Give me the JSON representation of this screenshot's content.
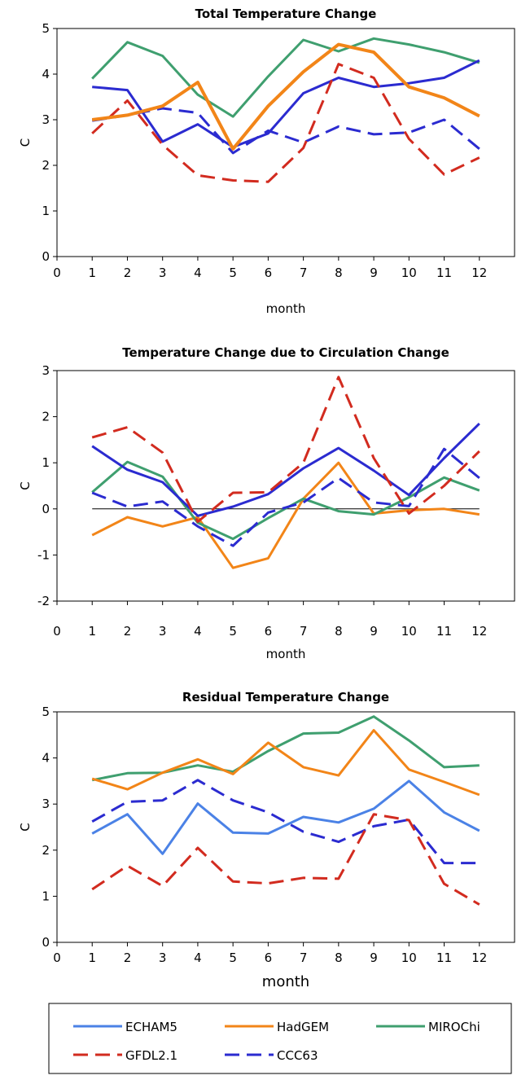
{
  "chart_data": [
    {
      "type": "line",
      "title": "Total Temperature Change",
      "xlabel": "month",
      "ylabel": "C",
      "xlim": [
        0,
        13
      ],
      "ylim": [
        0,
        5
      ],
      "x_ticks": [
        "0",
        "1",
        "2",
        "3",
        "4",
        "5",
        "6",
        "7",
        "8",
        "9",
        "10",
        "11",
        "12"
      ],
      "y_ticks": [
        "0",
        "1",
        "2",
        "3",
        "4",
        "5"
      ],
      "x": [
        1,
        2,
        3,
        4,
        5,
        6,
        7,
        8,
        9,
        10,
        11,
        12
      ],
      "series": [
        {
          "name": "MIROChi",
          "color": "#3f9f6f",
          "values": [
            3.9,
            4.7,
            4.4,
            3.55,
            3.07,
            3.95,
            4.75,
            4.5,
            4.78,
            4.65,
            4.48,
            4.25
          ]
        },
        {
          "name": "ECHAM5",
          "color": "#2b2bd0",
          "values": [
            3.72,
            3.65,
            2.52,
            2.9,
            2.4,
            2.7,
            3.58,
            3.92,
            3.72,
            3.8,
            3.92,
            4.3
          ]
        },
        {
          "name": "CCC63",
          "color": "#2b2bd0",
          "dashed": true,
          "values": [
            2.98,
            3.1,
            3.25,
            3.15,
            2.27,
            2.76,
            2.5,
            2.85,
            2.68,
            2.72,
            3.0,
            2.36
          ]
        },
        {
          "name": "GFDL2.1",
          "color": "#d22b1f",
          "dashed": true,
          "values": [
            2.7,
            3.42,
            2.45,
            1.78,
            1.67,
            1.64,
            2.38,
            4.22,
            3.92,
            2.58,
            1.8,
            2.17
          ]
        },
        {
          "name": "HadGEM",
          "color": "#f28518",
          "thick": true,
          "values": [
            3.0,
            3.1,
            3.3,
            3.82,
            2.36,
            3.3,
            4.05,
            4.65,
            4.48,
            3.72,
            3.48,
            3.08
          ]
        }
      ]
    },
    {
      "type": "line",
      "title": "Temperature Change due to Circulation Change",
      "xlabel": "month",
      "ylabel": "C",
      "xlim": [
        0,
        13
      ],
      "ylim": [
        -2,
        3
      ],
      "x_ticks": [
        "0",
        "1",
        "2",
        "3",
        "4",
        "5",
        "6",
        "7",
        "8",
        "9",
        "10",
        "11",
        "12"
      ],
      "y_ticks": [
        "-2",
        "-1",
        "0",
        "1",
        "2",
        "3"
      ],
      "zero_line": true,
      "x": [
        1,
        2,
        3,
        4,
        5,
        6,
        7,
        8,
        9,
        10,
        11,
        12
      ],
      "series": [
        {
          "name": "HadGEM",
          "color": "#f28518",
          "values": [
            -0.57,
            -0.18,
            -0.38,
            -0.18,
            -1.28,
            -1.07,
            0.22,
            1.0,
            -0.1,
            -0.03,
            0.0,
            -0.12
          ]
        },
        {
          "name": "MIROChi",
          "color": "#3f9f6f",
          "values": [
            0.36,
            1.02,
            0.7,
            -0.3,
            -0.65,
            -0.2,
            0.22,
            -0.05,
            -0.12,
            0.25,
            0.68,
            0.4
          ]
        },
        {
          "name": "ECHAM5",
          "color": "#2b2bd0",
          "values": [
            1.36,
            0.85,
            0.58,
            -0.15,
            0.05,
            0.32,
            0.88,
            1.32,
            0.83,
            0.3,
            1.1,
            1.85
          ]
        },
        {
          "name": "CCC63",
          "color": "#2b2bd0",
          "dashed": true,
          "values": [
            0.35,
            0.05,
            0.16,
            -0.38,
            -0.8,
            -0.08,
            0.14,
            0.67,
            0.14,
            0.06,
            1.3,
            0.67
          ]
        },
        {
          "name": "GFDL2.1",
          "color": "#d22b1f",
          "dashed": true,
          "values": [
            1.55,
            1.77,
            1.22,
            -0.28,
            0.35,
            0.36,
            1.0,
            2.86,
            1.1,
            -0.1,
            0.5,
            1.25
          ]
        }
      ]
    },
    {
      "type": "line",
      "title": "Residual Temperature Change",
      "xlabel": "month",
      "ylabel": "C",
      "xlim": [
        0,
        13
      ],
      "ylim": [
        0,
        5
      ],
      "x_ticks": [
        "0",
        "1",
        "2",
        "3",
        "4",
        "5",
        "6",
        "7",
        "8",
        "9",
        "10",
        "11",
        "12"
      ],
      "y_ticks": [
        "0",
        "1",
        "2",
        "3",
        "4",
        "5"
      ],
      "x": [
        1,
        2,
        3,
        4,
        5,
        6,
        7,
        8,
        9,
        10,
        11,
        12
      ],
      "series": [
        {
          "name": "MIROChi",
          "color": "#3f9f6f",
          "values": [
            3.52,
            3.67,
            3.68,
            3.84,
            3.7,
            4.15,
            4.53,
            4.55,
            4.9,
            4.38,
            3.8,
            3.84
          ]
        },
        {
          "name": "HadGEM",
          "color": "#f28518",
          "values": [
            3.55,
            3.32,
            3.68,
            3.97,
            3.65,
            4.33,
            3.8,
            3.62,
            4.6,
            3.75,
            3.48,
            3.2
          ]
        },
        {
          "name": "ECHAM5",
          "color": "#4b82e6",
          "values": [
            2.36,
            2.78,
            1.92,
            3.01,
            2.38,
            2.36,
            2.72,
            2.6,
            2.9,
            3.5,
            2.82,
            2.42
          ]
        },
        {
          "name": "CCC63",
          "color": "#2b2bd0",
          "dashed": true,
          "values": [
            2.62,
            3.05,
            3.08,
            3.52,
            3.08,
            2.82,
            2.4,
            2.18,
            2.52,
            2.66,
            1.72,
            1.72
          ]
        },
        {
          "name": "GFDL2.1",
          "color": "#d22b1f",
          "dashed": true,
          "values": [
            1.15,
            1.66,
            1.22,
            2.05,
            1.32,
            1.28,
            1.4,
            1.38,
            2.78,
            2.65,
            1.27,
            0.82
          ]
        }
      ]
    }
  ],
  "legend": {
    "items": [
      {
        "name": "ECHAM5",
        "color": "#4b82e6",
        "dashed": false
      },
      {
        "name": "HadGEM",
        "color": "#f28518",
        "dashed": false
      },
      {
        "name": "MIROChi",
        "color": "#3f9f6f",
        "dashed": false
      },
      {
        "name": "GFDL2.1",
        "color": "#d22b1f",
        "dashed": true
      },
      {
        "name": "CCC63",
        "color": "#2b2bd0",
        "dashed": true
      }
    ]
  }
}
